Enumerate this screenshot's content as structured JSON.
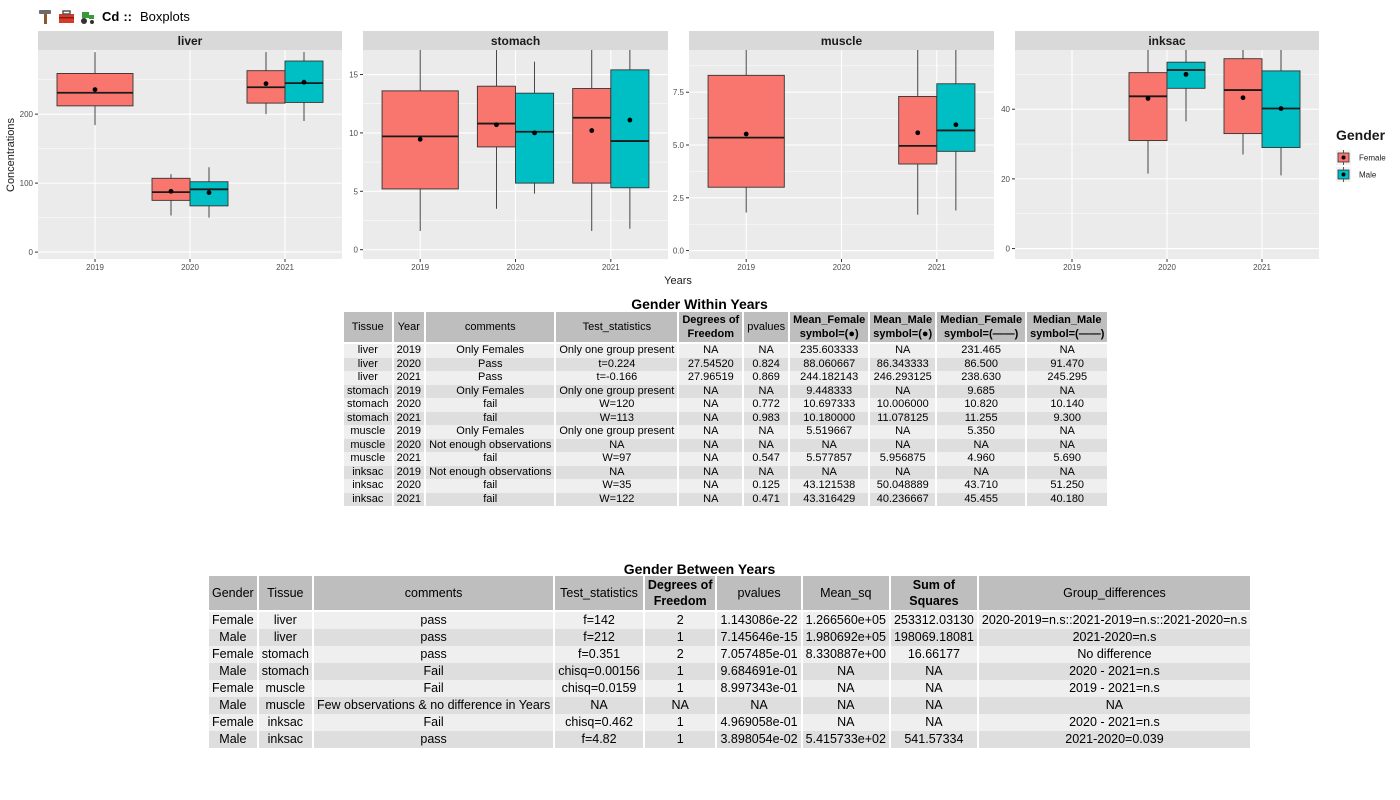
{
  "header": {
    "icons": [
      "hammer-icon",
      "toolbox-icon",
      "tractor-icon"
    ],
    "element": "Cd",
    "separator": "::",
    "title": "Boxplots"
  },
  "chart_data": {
    "type": "boxplot",
    "title": "Cd :: Boxplots",
    "xlabel": "Years",
    "ylabel": "Concentrations",
    "categories": [
      "2019",
      "2020",
      "2021"
    ],
    "legend": {
      "title": "Gender",
      "position": "right",
      "entries": [
        "Female",
        "Male"
      ]
    },
    "colors": {
      "Female": "#F8766D",
      "Male": "#00BFC4",
      "panel_bg": "#EBEBEB",
      "strip_bg": "#D9D9D9"
    },
    "facets": [
      {
        "name": "liver",
        "ylim": [
          -10,
          293
        ],
        "yticks": [
          0,
          100,
          200
        ],
        "boxes": [
          {
            "year": "2019",
            "gender": "Female",
            "min": 184,
            "q1": 212,
            "median": 231,
            "q3": 259,
            "max": 290,
            "mean": 235.6
          },
          {
            "year": "2020",
            "gender": "Female",
            "min": 53,
            "q1": 75,
            "median": 87,
            "q3": 107,
            "max": 113,
            "mean": 88.1
          },
          {
            "year": "2020",
            "gender": "Male",
            "min": 50,
            "q1": 67,
            "median": 91,
            "q3": 102,
            "max": 123,
            "mean": 86.3
          },
          {
            "year": "2021",
            "gender": "Female",
            "min": 200,
            "q1": 216,
            "median": 239,
            "q3": 263,
            "max": 290,
            "mean": 244.2
          },
          {
            "year": "2021",
            "gender": "Male",
            "min": 190,
            "q1": 217,
            "median": 245,
            "q3": 277,
            "max": 290,
            "mean": 246.3
          }
        ]
      },
      {
        "name": "stomach",
        "ylim": [
          -0.8,
          17.1
        ],
        "yticks": [
          0,
          5,
          10,
          15
        ],
        "boxes": [
          {
            "year": "2019",
            "gender": "Female",
            "min": 1.6,
            "q1": 5.2,
            "median": 9.7,
            "q3": 13.6,
            "max": 17.1,
            "mean": 9.45
          },
          {
            "year": "2020",
            "gender": "Female",
            "min": 3.5,
            "q1": 8.8,
            "median": 10.8,
            "q3": 14.0,
            "max": 17.1,
            "mean": 10.7
          },
          {
            "year": "2020",
            "gender": "Male",
            "min": 4.8,
            "q1": 5.7,
            "median": 10.1,
            "q3": 13.4,
            "max": 16.1,
            "mean": 10.0
          },
          {
            "year": "2021",
            "gender": "Female",
            "min": 1.6,
            "q1": 5.7,
            "median": 11.3,
            "q3": 13.8,
            "max": 17.1,
            "mean": 10.2
          },
          {
            "year": "2021",
            "gender": "Male",
            "min": 1.8,
            "q1": 5.3,
            "median": 9.3,
            "q3": 15.4,
            "max": 17.1,
            "mean": 11.1
          }
        ]
      },
      {
        "name": "muscle",
        "ylim": [
          -0.4,
          9.5
        ],
        "yticks": [
          0,
          2.5,
          5,
          7.5
        ],
        "ytick_labels": [
          "0.0",
          "2.5",
          "5.0",
          "7.5"
        ],
        "boxes": [
          {
            "year": "2019",
            "gender": "Female",
            "min": 1.8,
            "q1": 3.0,
            "median": 5.35,
            "q3": 8.3,
            "max": 9.5,
            "mean": 5.52
          },
          {
            "year": "2021",
            "gender": "Female",
            "min": 1.7,
            "q1": 4.1,
            "median": 4.96,
            "q3": 7.3,
            "max": 9.5,
            "mean": 5.58
          },
          {
            "year": "2021",
            "gender": "Male",
            "min": 1.9,
            "q1": 4.7,
            "median": 5.69,
            "q3": 7.9,
            "max": 9.5,
            "mean": 5.96
          }
        ]
      },
      {
        "name": "inksac",
        "ylim": [
          -3,
          57
        ],
        "yticks": [
          0,
          20,
          40
        ],
        "boxes": [
          {
            "year": "2020",
            "gender": "Female",
            "min": 21.5,
            "q1": 31.0,
            "median": 43.7,
            "q3": 50.5,
            "max": 57,
            "mean": 43.1
          },
          {
            "year": "2020",
            "gender": "Male",
            "min": 36.5,
            "q1": 46.0,
            "median": 51.25,
            "q3": 53.5,
            "max": 57,
            "mean": 50.0
          },
          {
            "year": "2021",
            "gender": "Female",
            "min": 27.0,
            "q1": 33.0,
            "median": 45.5,
            "q3": 54.5,
            "max": 57,
            "mean": 43.3
          },
          {
            "year": "2021",
            "gender": "Male",
            "min": 21.0,
            "q1": 29.0,
            "median": 40.2,
            "q3": 51.0,
            "max": 57,
            "mean": 40.2
          }
        ]
      }
    ]
  },
  "table1": {
    "title": "Gender Within Years",
    "headers": [
      "Tissue",
      "Year",
      "comments",
      "Test_statistics",
      "Degrees of\nFreedom",
      "pvalues",
      "Mean_Female\nsymbol=(●)",
      "Mean_Male\nsymbol=(●)",
      "Median_Female\nsymbol=(——)",
      "Median_Male\nsymbol=(——)"
    ],
    "rows": [
      [
        "liver",
        "2019",
        "Only Females",
        "Only one group present",
        "NA",
        "NA",
        "235.603333",
        "NA",
        "231.465",
        "NA"
      ],
      [
        "liver",
        "2020",
        "Pass",
        "t=0.224",
        "27.54520",
        "0.824",
        "88.060667",
        "86.343333",
        "86.500",
        "91.470"
      ],
      [
        "liver",
        "2021",
        "Pass",
        "t=-0.166",
        "27.96519",
        "0.869",
        "244.182143",
        "246.293125",
        "238.630",
        "245.295"
      ],
      [
        "stomach",
        "2019",
        "Only Females",
        "Only one group present",
        "NA",
        "NA",
        "9.448333",
        "NA",
        "9.685",
        "NA"
      ],
      [
        "stomach",
        "2020",
        "fail",
        "W=120",
        "NA",
        "0.772",
        "10.697333",
        "10.006000",
        "10.820",
        "10.140"
      ],
      [
        "stomach",
        "2021",
        "fail",
        "W=113",
        "NA",
        "0.983",
        "10.180000",
        "11.078125",
        "11.255",
        "9.300"
      ],
      [
        "muscle",
        "2019",
        "Only Females",
        "Only one group present",
        "NA",
        "NA",
        "5.519667",
        "NA",
        "5.350",
        "NA"
      ],
      [
        "muscle",
        "2020",
        "Not enough observations",
        "NA",
        "NA",
        "NA",
        "NA",
        "NA",
        "NA",
        "NA"
      ],
      [
        "muscle",
        "2021",
        "fail",
        "W=97",
        "NA",
        "0.547",
        "5.577857",
        "5.956875",
        "4.960",
        "5.690"
      ],
      [
        "inksac",
        "2019",
        "Not enough observations",
        "NA",
        "NA",
        "NA",
        "NA",
        "NA",
        "NA",
        "NA"
      ],
      [
        "inksac",
        "2020",
        "fail",
        "W=35",
        "NA",
        "0.125",
        "43.121538",
        "50.048889",
        "43.710",
        "51.250"
      ],
      [
        "inksac",
        "2021",
        "fail",
        "W=122",
        "NA",
        "0.471",
        "43.316429",
        "40.236667",
        "45.455",
        "40.180"
      ]
    ]
  },
  "table2": {
    "title": "Gender Between Years",
    "headers": [
      "Gender",
      "Tissue",
      "comments",
      "Test_statistics",
      "Degrees of\nFreedom",
      "pvalues",
      "Mean_sq",
      "Sum of\nSquares",
      "Group_differences"
    ],
    "rows": [
      [
        "Female",
        "liver",
        "pass",
        "f=142",
        "2",
        "1.143086e-22",
        "1.266560e+05",
        "253312.03130",
        "2020-2019=n.s::2021-2019=n.s::2021-2020=n.s"
      ],
      [
        "Male",
        "liver",
        "pass",
        "f=212",
        "1",
        "7.145646e-15",
        "1.980692e+05",
        "198069.18081",
        "2021-2020=n.s"
      ],
      [
        "Female",
        "stomach",
        "pass",
        "f=0.351",
        "2",
        "7.057485e-01",
        "8.330887e+00",
        "16.66177",
        "No difference"
      ],
      [
        "Male",
        "stomach",
        "Fail",
        "chisq=0.00156",
        "1",
        "9.684691e-01",
        "NA",
        "NA",
        "2020 - 2021=n.s"
      ],
      [
        "Female",
        "muscle",
        "Fail",
        "chisq=0.0159",
        "1",
        "8.997343e-01",
        "NA",
        "NA",
        "2019 - 2021=n.s"
      ],
      [
        "Male",
        "muscle",
        "Few observations & no difference in Years",
        "NA",
        "NA",
        "NA",
        "NA",
        "NA",
        "NA"
      ],
      [
        "Female",
        "inksac",
        "Fail",
        "chisq=0.462",
        "1",
        "4.969058e-01",
        "NA",
        "NA",
        "2020 - 2021=n.s"
      ],
      [
        "Male",
        "inksac",
        "pass",
        "f=4.82",
        "1",
        "3.898054e-02",
        "5.415733e+02",
        "541.57334",
        "2021-2020=0.039"
      ]
    ]
  }
}
